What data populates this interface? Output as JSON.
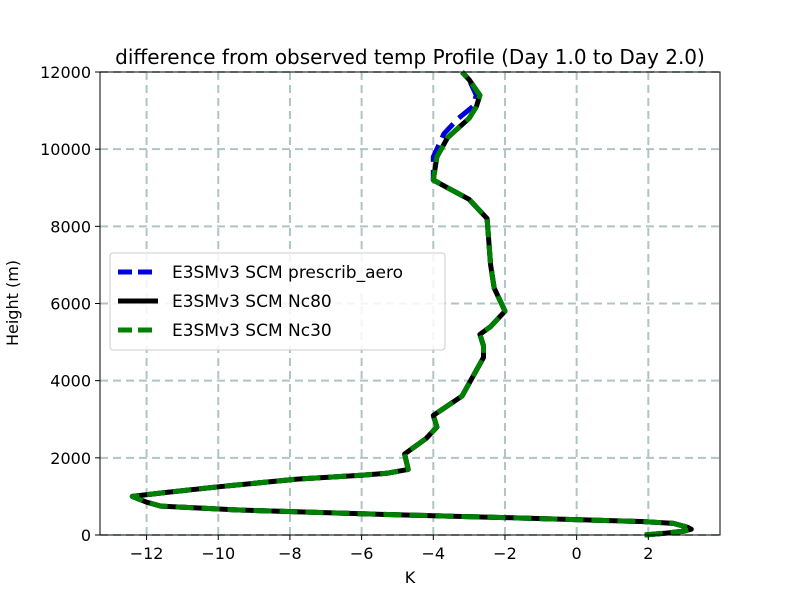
{
  "chart_data": {
    "type": "line",
    "title": "difference from observed temp Profile (Day 1.0 to Day 2.0)",
    "xlabel": "K",
    "ylabel": "Height (m)",
    "xlim": [
      -13.3,
      4.0
    ],
    "ylim": [
      0,
      12000
    ],
    "xticks": [
      -12,
      -10,
      -8,
      -6,
      -4,
      -2,
      0,
      2
    ],
    "yticks": [
      0,
      2000,
      4000,
      6000,
      8000,
      10000,
      12000
    ],
    "grid": true,
    "legend_position": "center-left",
    "series": [
      {
        "name": "E3SMv3 SCM prescrib_aero",
        "color": "#0000dd",
        "style": "dashed",
        "points": [
          [
            1.9,
            0
          ],
          [
            2.5,
            50
          ],
          [
            3.0,
            100
          ],
          [
            3.2,
            150
          ],
          [
            3.1,
            200
          ],
          [
            2.7,
            300
          ],
          [
            1.8,
            350
          ],
          [
            -2.0,
            450
          ],
          [
            -6.0,
            550
          ],
          [
            -9.5,
            650
          ],
          [
            -11.6,
            750
          ],
          [
            -12.0,
            850
          ],
          [
            -12.4,
            1000
          ],
          [
            -11.5,
            1100
          ],
          [
            -10.0,
            1250
          ],
          [
            -7.8,
            1450
          ],
          [
            -6.0,
            1550
          ],
          [
            -5.3,
            1600
          ],
          [
            -4.7,
            1700
          ],
          [
            -4.8,
            2100
          ],
          [
            -4.2,
            2500
          ],
          [
            -3.9,
            2800
          ],
          [
            -4.0,
            3100
          ],
          [
            -3.2,
            3600
          ],
          [
            -2.6,
            4600
          ],
          [
            -2.6,
            4900
          ],
          [
            -2.7,
            5200
          ],
          [
            -2.4,
            5400
          ],
          [
            -2.0,
            5800
          ],
          [
            -2.3,
            6400
          ],
          [
            -2.4,
            7000
          ],
          [
            -2.5,
            8200
          ],
          [
            -3.0,
            8700
          ],
          [
            -3.6,
            9000
          ],
          [
            -4.0,
            9200
          ],
          [
            -4.0,
            9800
          ],
          [
            -3.7,
            10400
          ],
          [
            -3.3,
            10800
          ],
          [
            -2.9,
            11100
          ],
          [
            -2.8,
            11400
          ],
          [
            -3.0,
            11800
          ],
          [
            -3.2,
            12000
          ]
        ]
      },
      {
        "name": "E3SMv3 SCM Nc80",
        "color": "#000000",
        "style": "solid",
        "points": [
          [
            1.9,
            0
          ],
          [
            2.5,
            50
          ],
          [
            3.0,
            100
          ],
          [
            3.2,
            150
          ],
          [
            3.1,
            200
          ],
          [
            2.7,
            300
          ],
          [
            1.8,
            350
          ],
          [
            -2.0,
            450
          ],
          [
            -6.0,
            550
          ],
          [
            -9.5,
            650
          ],
          [
            -11.6,
            750
          ],
          [
            -12.0,
            850
          ],
          [
            -12.4,
            1000
          ],
          [
            -11.5,
            1100
          ],
          [
            -10.0,
            1250
          ],
          [
            -7.8,
            1450
          ],
          [
            -6.0,
            1550
          ],
          [
            -5.3,
            1600
          ],
          [
            -4.7,
            1700
          ],
          [
            -4.8,
            2100
          ],
          [
            -4.2,
            2500
          ],
          [
            -3.9,
            2800
          ],
          [
            -4.0,
            3100
          ],
          [
            -3.2,
            3600
          ],
          [
            -2.6,
            4600
          ],
          [
            -2.6,
            4900
          ],
          [
            -2.7,
            5200
          ],
          [
            -2.4,
            5400
          ],
          [
            -2.0,
            5800
          ],
          [
            -2.3,
            6400
          ],
          [
            -2.4,
            7000
          ],
          [
            -2.5,
            8200
          ],
          [
            -3.0,
            8700
          ],
          [
            -3.6,
            9000
          ],
          [
            -4.0,
            9200
          ],
          [
            -3.9,
            9800
          ],
          [
            -3.6,
            10300
          ],
          [
            -3.0,
            10800
          ],
          [
            -2.8,
            11100
          ],
          [
            -2.7,
            11400
          ],
          [
            -3.0,
            11800
          ],
          [
            -3.2,
            12000
          ]
        ]
      },
      {
        "name": "E3SMv3 SCM Nc30",
        "color": "#008000",
        "style": "dashed",
        "points": [
          [
            1.9,
            0
          ],
          [
            2.5,
            50
          ],
          [
            3.0,
            100
          ],
          [
            3.2,
            150
          ],
          [
            3.1,
            200
          ],
          [
            2.7,
            300
          ],
          [
            1.8,
            350
          ],
          [
            -2.0,
            450
          ],
          [
            -6.0,
            550
          ],
          [
            -9.5,
            650
          ],
          [
            -11.6,
            750
          ],
          [
            -12.0,
            850
          ],
          [
            -12.4,
            1000
          ],
          [
            -11.5,
            1100
          ],
          [
            -10.0,
            1250
          ],
          [
            -7.8,
            1450
          ],
          [
            -6.0,
            1550
          ],
          [
            -5.3,
            1600
          ],
          [
            -4.7,
            1700
          ],
          [
            -4.8,
            2100
          ],
          [
            -4.2,
            2500
          ],
          [
            -3.9,
            2800
          ],
          [
            -4.0,
            3100
          ],
          [
            -3.2,
            3600
          ],
          [
            -2.6,
            4600
          ],
          [
            -2.6,
            4900
          ],
          [
            -2.7,
            5200
          ],
          [
            -2.4,
            5400
          ],
          [
            -2.0,
            5800
          ],
          [
            -2.3,
            6400
          ],
          [
            -2.4,
            7000
          ],
          [
            -2.5,
            8200
          ],
          [
            -3.0,
            8700
          ],
          [
            -3.6,
            9000
          ],
          [
            -4.0,
            9200
          ],
          [
            -3.9,
            9800
          ],
          [
            -3.6,
            10300
          ],
          [
            -3.0,
            10800
          ],
          [
            -2.8,
            11100
          ],
          [
            -2.7,
            11400
          ],
          [
            -3.0,
            11800
          ],
          [
            -3.2,
            12000
          ]
        ]
      }
    ]
  }
}
